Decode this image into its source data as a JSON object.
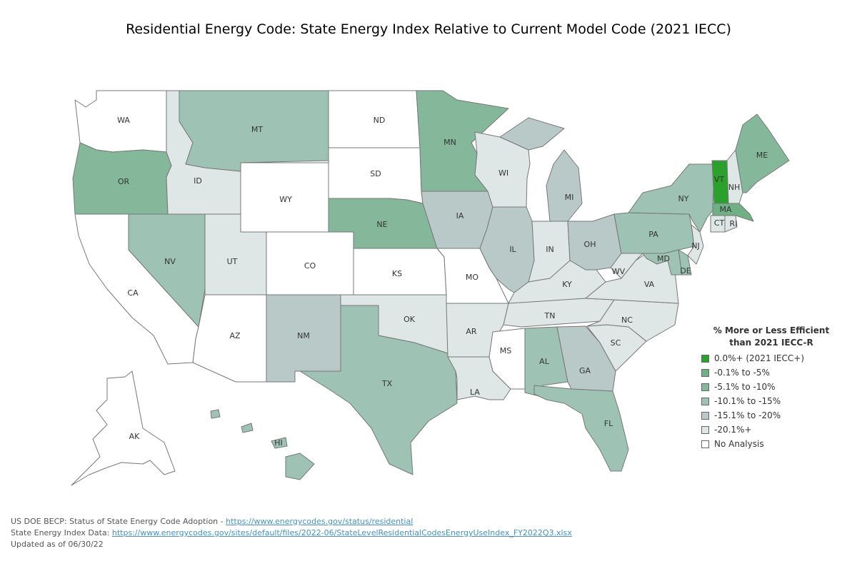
{
  "title": "Residential Energy Code: State Energy Index Relative to Current Model Code (2021 IECC)",
  "colors": {
    "c0": "#2ca02c",
    "c1": "#6fb084",
    "c2": "#85b89b",
    "c3": "#9ec3b5",
    "c4": "#b9c9c7",
    "c5": "#dfe6e6",
    "none": "#ffffff"
  },
  "legend": {
    "title": "% More or Less Efficient than 2021 IECC-R",
    "items": [
      {
        "key": "c0",
        "label": "0.0%+ (2021 IECC+)"
      },
      {
        "key": "c1",
        "label": "-0.1% to -5%"
      },
      {
        "key": "c2",
        "label": "-5.1% to -10%"
      },
      {
        "key": "c3",
        "label": "-10.1% to -15%"
      },
      {
        "key": "c4",
        "label": "-15.1% to -20%"
      },
      {
        "key": "c5",
        "label": "-20.1%+"
      },
      {
        "key": "none",
        "label": "No Analysis"
      }
    ]
  },
  "states": {
    "WA": {
      "label": "WA",
      "cat": "none"
    },
    "OR": {
      "label": "OR",
      "cat": "c2"
    },
    "CA": {
      "label": "CA",
      "cat": "none"
    },
    "ID": {
      "label": "ID",
      "cat": "c5"
    },
    "NV": {
      "label": "NV",
      "cat": "c3"
    },
    "MT": {
      "label": "MT",
      "cat": "c3"
    },
    "WY": {
      "label": "WY",
      "cat": "none"
    },
    "UT": {
      "label": "UT",
      "cat": "c5"
    },
    "AZ": {
      "label": "AZ",
      "cat": "none"
    },
    "CO": {
      "label": "CO",
      "cat": "none"
    },
    "NM": {
      "label": "NM",
      "cat": "c4"
    },
    "ND": {
      "label": "ND",
      "cat": "none"
    },
    "SD": {
      "label": "SD",
      "cat": "none"
    },
    "NE": {
      "label": "NE",
      "cat": "c2"
    },
    "KS": {
      "label": "KS",
      "cat": "none"
    },
    "OK": {
      "label": "OK",
      "cat": "c5"
    },
    "TX": {
      "label": "TX",
      "cat": "c3"
    },
    "MN": {
      "label": "MN",
      "cat": "c2"
    },
    "IA": {
      "label": "IA",
      "cat": "c4"
    },
    "MO": {
      "label": "MO",
      "cat": "none"
    },
    "AR": {
      "label": "AR",
      "cat": "c5"
    },
    "LA": {
      "label": "LA",
      "cat": "c5"
    },
    "WI": {
      "label": "WI",
      "cat": "c5"
    },
    "IL": {
      "label": "IL",
      "cat": "c4"
    },
    "MS": {
      "label": "MS",
      "cat": "none"
    },
    "MI": {
      "label": "MI",
      "cat": "c4"
    },
    "IN": {
      "label": "IN",
      "cat": "c5"
    },
    "OH": {
      "label": "OH",
      "cat": "c4"
    },
    "KY": {
      "label": "KY",
      "cat": "c5"
    },
    "TN": {
      "label": "TN",
      "cat": "c5"
    },
    "AL": {
      "label": "AL",
      "cat": "c3"
    },
    "GA": {
      "label": "GA",
      "cat": "c4"
    },
    "FL": {
      "label": "FL",
      "cat": "c3"
    },
    "SC": {
      "label": "SC",
      "cat": "c5"
    },
    "NC": {
      "label": "NC",
      "cat": "c5"
    },
    "VA": {
      "label": "VA",
      "cat": "c5"
    },
    "WV": {
      "label": "WV",
      "cat": "c5"
    },
    "PA": {
      "label": "PA",
      "cat": "c3"
    },
    "NY": {
      "label": "NY",
      "cat": "c3"
    },
    "VT": {
      "label": "VT",
      "cat": "c0"
    },
    "NH": {
      "label": "NH",
      "cat": "c5"
    },
    "ME": {
      "label": "ME",
      "cat": "c2"
    },
    "MA": {
      "label": "MA",
      "cat": "c1"
    },
    "CT": {
      "label": "CT",
      "cat": "c5"
    },
    "RI": {
      "label": "RI",
      "cat": "c5"
    },
    "NJ": {
      "label": "NJ",
      "cat": "c5"
    },
    "DE": {
      "label": "DE",
      "cat": "c3"
    },
    "MD": {
      "label": "MD",
      "cat": "c3"
    },
    "AK": {
      "label": "AK",
      "cat": "none"
    },
    "HI": {
      "label": "HI",
      "cat": "c3"
    }
  },
  "footer": {
    "line1_prefix": "US DOE BECP: Status of State Energy Code Adoption - ",
    "line1_link": "https://www.energycodes.gov/status/residential",
    "line2_prefix": "State Energy Index Data: ",
    "line2_link": "https://www.energycodes.gov/sites/default/files/2022-06/StateLevelResidentialCodesEnergyUseIndex_FY2022Q3.xlsx",
    "line3": "Updated as of 06/30/22"
  }
}
